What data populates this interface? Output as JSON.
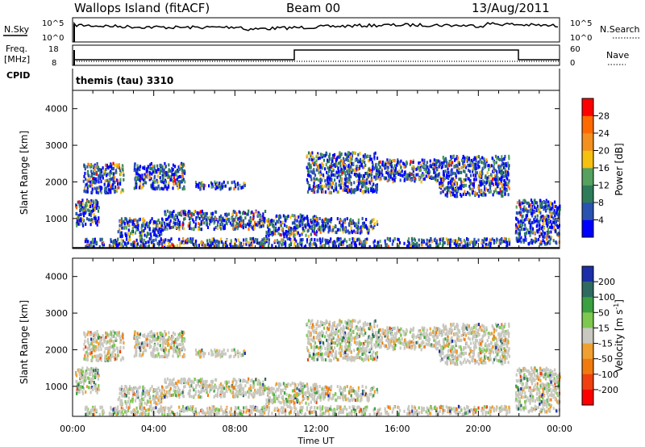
{
  "header": {
    "station": "Wallops Island (fitACF)",
    "beam": "Beam 00",
    "date": "13/Aug/2011"
  },
  "top_panels": {
    "nsky_label": "N.Sky",
    "nsearch_label": "N.Search",
    "nsky_ticks": [
      "10^5",
      "10^0"
    ],
    "freq_label_1": "Freq.",
    "freq_label_2": "[MHz]",
    "freq_ticks": [
      "18",
      "8"
    ],
    "nave_label": "Nave",
    "nave_ticks": [
      "60",
      "0"
    ],
    "cpid_label": "CPID",
    "cpid_text": "themis (tau) 3310"
  },
  "chart_data": [
    {
      "type": "heatmap",
      "name": "power",
      "ylabel": "Slant Range [km]",
      "y_ticks": [
        1000,
        2000,
        3000,
        4000
      ],
      "ylim": [
        180,
        4500
      ],
      "xlim": [
        0,
        24
      ],
      "colorbar": {
        "label": "Power [dB]",
        "ticks": [
          "28",
          "24",
          "20",
          "16",
          "12",
          "8",
          "4"
        ],
        "colors": [
          "#0000ff",
          "#2a52b0",
          "#2e7b5a",
          "#56a060",
          "#f5c010",
          "#f49020",
          "#ff6a00",
          "#ff0000"
        ]
      },
      "echo_regions": [
        {
          "t0": 0.1,
          "t1": 1.3,
          "r0": 800,
          "r1": 1500
        },
        {
          "t0": 0.5,
          "t1": 2.5,
          "r0": 1700,
          "r1": 2500
        },
        {
          "t0": 2.2,
          "t1": 4.5,
          "r0": 500,
          "r1": 1000
        },
        {
          "t0": 3.0,
          "t1": 5.5,
          "r0": 1800,
          "r1": 2500
        },
        {
          "t0": 4.5,
          "t1": 9.5,
          "r0": 700,
          "r1": 1200
        },
        {
          "t0": 6.0,
          "t1": 8.5,
          "r0": 1800,
          "r1": 2000
        },
        {
          "t0": 9.5,
          "t1": 12.0,
          "r0": 500,
          "r1": 1100
        },
        {
          "t0": 11.5,
          "t1": 15.0,
          "r0": 1700,
          "r1": 2800
        },
        {
          "t0": 12.0,
          "t1": 15.0,
          "r0": 600,
          "r1": 1000
        },
        {
          "t0": 15.0,
          "t1": 18.0,
          "r0": 2000,
          "r1": 2600
        },
        {
          "t0": 18.0,
          "t1": 21.5,
          "r0": 1600,
          "r1": 2700
        },
        {
          "t0": 21.8,
          "t1": 24.0,
          "r0": 300,
          "r1": 1500
        },
        {
          "t0": 0.5,
          "t1": 21.5,
          "r0": 220,
          "r1": 450
        }
      ]
    },
    {
      "type": "heatmap",
      "name": "velocity",
      "ylabel": "Slant Range [km]",
      "xlabel": "Time UT",
      "y_ticks": [
        1000,
        2000,
        3000,
        4000
      ],
      "ylim": [
        180,
        4500
      ],
      "xlim": [
        0,
        24
      ],
      "x_ticks": [
        "00:00",
        "04:00",
        "08:00",
        "12:00",
        "16:00",
        "20:00",
        "00:00"
      ],
      "colorbar": {
        "label": "Velocity [m s",
        "label_sup": "-1",
        "label_end": "]",
        "ticks": [
          "200",
          "100",
          "50",
          "15",
          "-15",
          "-50",
          "-100",
          "-200"
        ],
        "colors": [
          "#1c2fa8",
          "#2e6a60",
          "#3aa040",
          "#7ec850",
          "#c8c8c0",
          "#f0a030",
          "#f07a10",
          "#f04010",
          "#ff0000"
        ]
      }
    }
  ]
}
